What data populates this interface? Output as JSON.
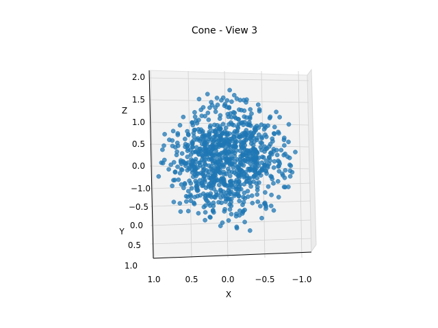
{
  "chart_data": {
    "type": "scatter",
    "title": "Cone - View 3",
    "xlabel": "X",
    "ylabel": "Y",
    "zlabel": "Z",
    "xlim": [
      -1.0,
      1.0
    ],
    "ylim": [
      -1.0,
      1.0
    ],
    "zlim": [
      0.0,
      2.0
    ],
    "x_ticks": [
      "1.0",
      "0.5",
      "0.0",
      "−0.5",
      "−1.0"
    ],
    "y_ticks": [
      "−1.0",
      "−0.5",
      "0.0",
      "0.5",
      "1.0"
    ],
    "z_ticks": [
      "0.0",
      "0.5",
      "1.0",
      "1.5",
      "2.0"
    ],
    "marker_color": "#1f77b4",
    "grid": true,
    "series": [
      {
        "points_sample": [
          {
            "x": 0.02,
            "y": 0.05,
            "z": 1.2
          },
          {
            "x": -0.05,
            "y": -0.1,
            "z": 1.4
          },
          {
            "x": 0.1,
            "y": 0.02,
            "z": 1.0
          },
          {
            "x": -0.12,
            "y": 0.15,
            "z": 0.8
          },
          {
            "x": 0.2,
            "y": -0.2,
            "z": 0.9
          },
          {
            "x": -0.25,
            "y": -0.05,
            "z": 1.1
          },
          {
            "x": 0.35,
            "y": 0.3,
            "z": 0.6
          },
          {
            "x": -0.4,
            "y": 0.35,
            "z": 0.5
          },
          {
            "x": 0.55,
            "y": -0.4,
            "z": 0.4
          },
          {
            "x": -0.6,
            "y": -0.3,
            "z": 0.3
          },
          {
            "x": 0.8,
            "y": 0.1,
            "z": 0.15
          },
          {
            "x": -0.85,
            "y": 0.05,
            "z": 0.1
          },
          {
            "x": 0.1,
            "y": 0.85,
            "z": 0.1
          },
          {
            "x": -0.05,
            "y": -0.8,
            "z": 0.2
          },
          {
            "x": 0.65,
            "y": 0.55,
            "z": 0.1
          },
          {
            "x": -0.7,
            "y": -0.6,
            "z": 0.1
          }
        ]
      }
    ]
  }
}
